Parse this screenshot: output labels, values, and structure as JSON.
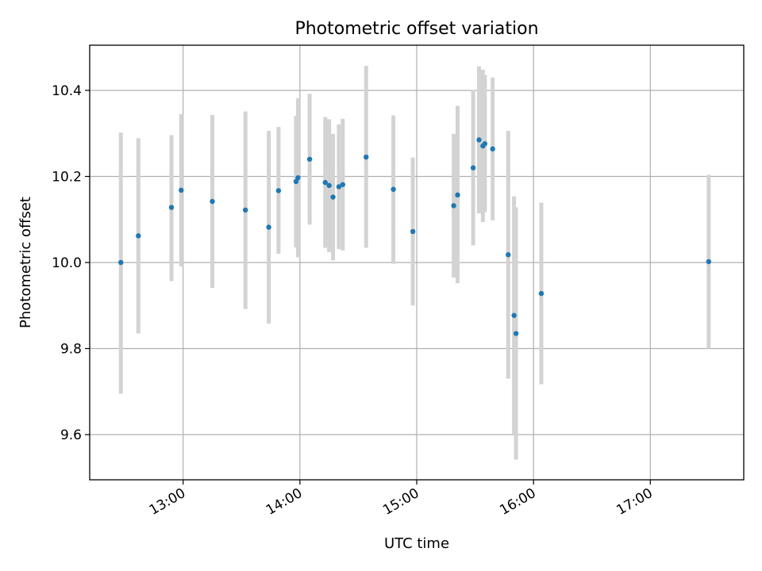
{
  "chart_data": {
    "type": "scatter",
    "title": "Photometric offset variation",
    "xlabel": "UTC time",
    "ylabel": "Photometric offset",
    "xlim": [
      "12:12",
      "17:48"
    ],
    "ylim": [
      9.495,
      10.505
    ],
    "xticks": [
      "13:00",
      "14:00",
      "15:00",
      "16:00",
      "17:00"
    ],
    "yticks": [
      "9.6",
      "9.8",
      "10.0",
      "10.2",
      "10.4"
    ],
    "grid": true,
    "marker_color": "#1f77b4",
    "errorbar_color": "#d3d3d3",
    "points": [
      {
        "x": "12:28",
        "y": 10.0,
        "lo": 9.695,
        "hi": 10.302
      },
      {
        "x": "12:37",
        "y": 10.062,
        "lo": 9.835,
        "hi": 10.289
      },
      {
        "x": "12:54",
        "y": 10.128,
        "lo": 9.957,
        "hi": 10.296
      },
      {
        "x": "12:59",
        "y": 10.168,
        "lo": 9.991,
        "hi": 10.345
      },
      {
        "x": "13:15",
        "y": 10.142,
        "lo": 9.941,
        "hi": 10.343
      },
      {
        "x": "13:32",
        "y": 10.122,
        "lo": 9.892,
        "hi": 10.351
      },
      {
        "x": "13:44",
        "y": 10.082,
        "lo": 9.858,
        "hi": 10.306
      },
      {
        "x": "13:49",
        "y": 10.167,
        "lo": 10.02,
        "hi": 10.315
      },
      {
        "x": "13:58",
        "y": 10.188,
        "lo": 10.035,
        "hi": 10.341
      },
      {
        "x": "13:59",
        "y": 10.197,
        "lo": 10.012,
        "hi": 10.382
      },
      {
        "x": "14:05",
        "y": 10.24,
        "lo": 10.088,
        "hi": 10.392
      },
      {
        "x": "14:13",
        "y": 10.186,
        "lo": 10.034,
        "hi": 10.338
      },
      {
        "x": "14:15",
        "y": 10.179,
        "lo": 10.024,
        "hi": 10.333
      },
      {
        "x": "14:17",
        "y": 10.152,
        "lo": 10.005,
        "hi": 10.299
      },
      {
        "x": "14:20",
        "y": 10.176,
        "lo": 10.031,
        "hi": 10.321
      },
      {
        "x": "14:22",
        "y": 10.181,
        "lo": 10.028,
        "hi": 10.334
      },
      {
        "x": "14:34",
        "y": 10.245,
        "lo": 10.034,
        "hi": 10.457
      },
      {
        "x": "14:48",
        "y": 10.17,
        "lo": 9.997,
        "hi": 10.342
      },
      {
        "x": "14:58",
        "y": 10.072,
        "lo": 9.9,
        "hi": 10.244
      },
      {
        "x": "15:19",
        "y": 10.132,
        "lo": 9.965,
        "hi": 10.299
      },
      {
        "x": "15:21",
        "y": 10.157,
        "lo": 9.952,
        "hi": 10.364
      },
      {
        "x": "15:29",
        "y": 10.22,
        "lo": 10.04,
        "hi": 10.401
      },
      {
        "x": "15:32",
        "y": 10.285,
        "lo": 10.114,
        "hi": 10.456
      },
      {
        "x": "15:34",
        "y": 10.271,
        "lo": 10.094,
        "hi": 10.448
      },
      {
        "x": "15:35",
        "y": 10.276,
        "lo": 10.117,
        "hi": 10.436
      },
      {
        "x": "15:39",
        "y": 10.264,
        "lo": 10.098,
        "hi": 10.43
      },
      {
        "x": "15:47",
        "y": 10.018,
        "lo": 9.73,
        "hi": 10.306
      },
      {
        "x": "15:50",
        "y": 9.877,
        "lo": 9.6,
        "hi": 10.154
      },
      {
        "x": "15:51",
        "y": 9.835,
        "lo": 9.542,
        "hi": 10.128
      },
      {
        "x": "16:04",
        "y": 9.928,
        "lo": 9.717,
        "hi": 10.139
      },
      {
        "x": "17:30",
        "y": 10.002,
        "lo": 9.8,
        "hi": 10.204
      }
    ]
  }
}
